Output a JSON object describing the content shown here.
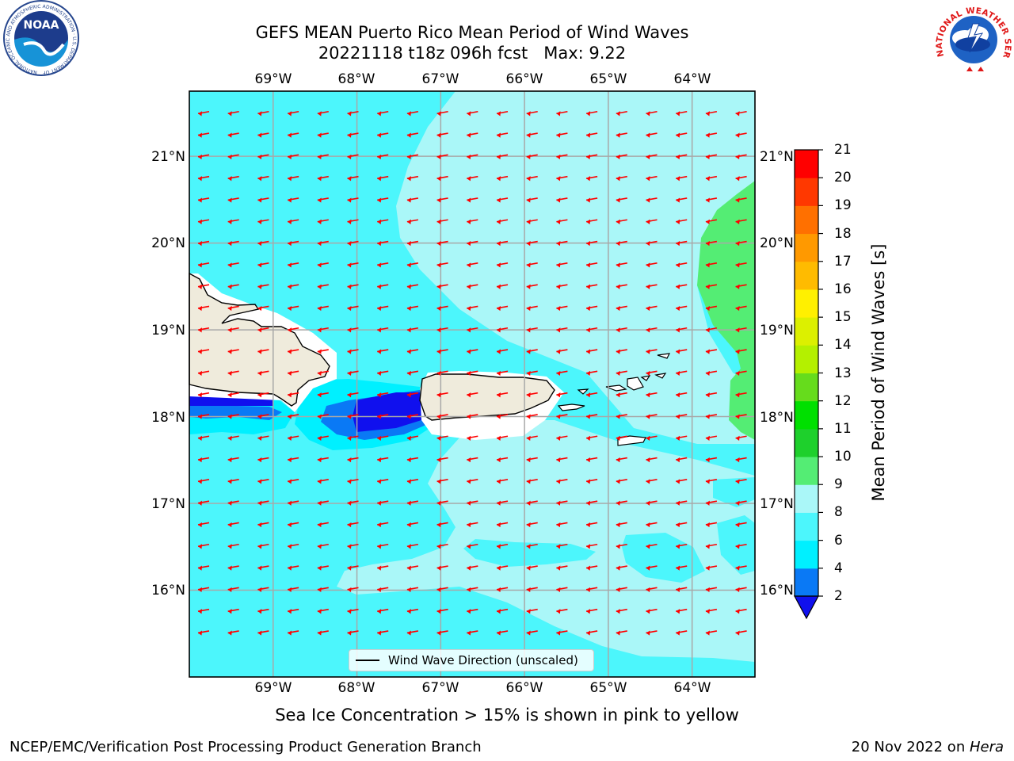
{
  "title": {
    "line1": "GEFS MEAN Puerto Rico Mean Period of Wind Waves",
    "line2": "20221118 t18z 096h fcst   Max: 9.22"
  },
  "logos": {
    "left": "NOAA",
    "left_ring_text": "NATIONAL OCEANIC AND ATMOSPHERIC ADMINISTRATION · U.S. DEPARTMENT OF COMMERCE",
    "right_ring_text": "NATIONAL WEATHER SERVICE"
  },
  "map": {
    "lon_labels": [
      "69°W",
      "68°W",
      "67°W",
      "66°W",
      "65°W",
      "64°W"
    ],
    "lat_labels": [
      "21°N",
      "20°N",
      "19°N",
      "18°N",
      "17°N",
      "16°N"
    ],
    "lon_range": [
      -70.0,
      -63.25
    ],
    "lat_range": [
      15.0,
      21.75
    ],
    "arrow_color": "#ff0000",
    "land_color": "#efebdc",
    "legend_label": "Wind Wave Direction (unscaled)",
    "wave_direction": "from east, pointing west with slight southward component",
    "grid": true
  },
  "colorbar": {
    "label": "Mean Period of Wind Waves [s]",
    "ticks": [
      "21",
      "20",
      "19",
      "18",
      "17",
      "16",
      "15",
      "14",
      "13",
      "12",
      "11",
      "10",
      "9",
      "8",
      "6",
      "4",
      "2"
    ],
    "extend": "min",
    "under_color": "#1010ee",
    "bands": [
      {
        "from": 2,
        "to": 4,
        "color": "#0a79f5"
      },
      {
        "from": 4,
        "to": 6,
        "color": "#00f0ff"
      },
      {
        "from": 6,
        "to": 8,
        "color": "#4cf6fc"
      },
      {
        "from": 8,
        "to": 9,
        "color": "#aaf7f8"
      },
      {
        "from": 9,
        "to": 10,
        "color": "#54ed74"
      },
      {
        "from": 10,
        "to": 11,
        "color": "#1ed02c"
      },
      {
        "from": 11,
        "to": 12,
        "color": "#00e000"
      },
      {
        "from": 12,
        "to": 13,
        "color": "#66dc1c"
      },
      {
        "from": 13,
        "to": 14,
        "color": "#b4f000"
      },
      {
        "from": 14,
        "to": 15,
        "color": "#dcf000"
      },
      {
        "from": 15,
        "to": 16,
        "color": "#fff000"
      },
      {
        "from": 16,
        "to": 17,
        "color": "#ffbb00"
      },
      {
        "from": 17,
        "to": 18,
        "color": "#ff9900"
      },
      {
        "from": 18,
        "to": 19,
        "color": "#ff7000"
      },
      {
        "from": 19,
        "to": 20,
        "color": "#ff3800"
      },
      {
        "from": 20,
        "to": 21,
        "color": "#ff0000"
      }
    ]
  },
  "note": "Sea Ice Concentration > 15% is shown in pink to yellow",
  "footer": {
    "left": "NCEP/EMC/Verification Post Processing Product Generation Branch",
    "date": "20 Nov 2022 on ",
    "machine": "Hera"
  }
}
